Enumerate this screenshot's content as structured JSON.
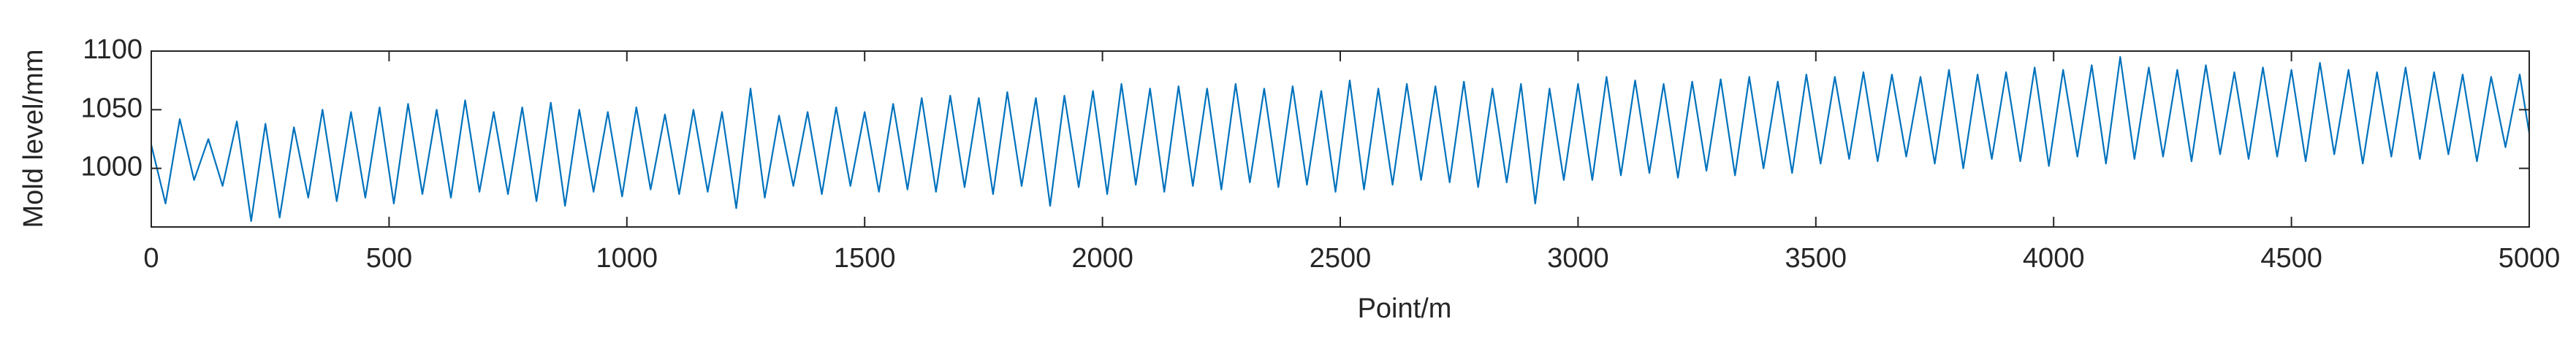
{
  "chart_data": {
    "type": "line",
    "xlabel": "Point/m",
    "ylabel": "Mold level/mm",
    "xlim": [
      0,
      5000
    ],
    "xticks": [
      0,
      500,
      1000,
      1500,
      2000,
      2500,
      3000,
      3500,
      4000,
      4500,
      5000
    ],
    "ylim": [
      950,
      1100
    ],
    "yticks": [
      1000,
      1050,
      1100
    ],
    "color": "#0072bd",
    "x": [
      0,
      30,
      60,
      90,
      120,
      150,
      180,
      210,
      240,
      270,
      300,
      330,
      360,
      390,
      420,
      450,
      480,
      510,
      540,
      570,
      600,
      630,
      660,
      690,
      720,
      750,
      780,
      810,
      840,
      870,
      900,
      930,
      960,
      990,
      1020,
      1050,
      1080,
      1110,
      1140,
      1170,
      1200,
      1230,
      1260,
      1290,
      1320,
      1350,
      1380,
      1410,
      1440,
      1470,
      1500,
      1530,
      1560,
      1590,
      1620,
      1650,
      1680,
      1710,
      1740,
      1770,
      1800,
      1830,
      1860,
      1890,
      1920,
      1950,
      1980,
      2010,
      2040,
      2070,
      2100,
      2130,
      2160,
      2190,
      2220,
      2250,
      2280,
      2310,
      2340,
      2370,
      2400,
      2430,
      2460,
      2490,
      2520,
      2550,
      2580,
      2610,
      2640,
      2670,
      2700,
      2730,
      2760,
      2790,
      2820,
      2850,
      2880,
      2910,
      2940,
      2970,
      3000,
      3030,
      3060,
      3090,
      3120,
      3150,
      3180,
      3210,
      3240,
      3270,
      3300,
      3330,
      3360,
      3390,
      3420,
      3450,
      3480,
      3510,
      3540,
      3570,
      3600,
      3630,
      3660,
      3690,
      3720,
      3750,
      3780,
      3810,
      3840,
      3870,
      3900,
      3930,
      3960,
      3990,
      4020,
      4050,
      4080,
      4110,
      4140,
      4170,
      4200,
      4230,
      4260,
      4290,
      4320,
      4350,
      4380,
      4410,
      4440,
      4470,
      4500,
      4530,
      4560,
      4590,
      4620,
      4650,
      4680,
      4710,
      4740,
      4770,
      4800,
      4830,
      4860,
      4890,
      4920,
      4950,
      4980,
      5000
    ],
    "values": [
      1020,
      970,
      1042,
      990,
      1025,
      985,
      1040,
      955,
      1038,
      958,
      1035,
      975,
      1050,
      972,
      1048,
      975,
      1052,
      970,
      1055,
      978,
      1050,
      975,
      1058,
      980,
      1048,
      978,
      1052,
      972,
      1056,
      968,
      1050,
      980,
      1048,
      976,
      1052,
      982,
      1046,
      978,
      1050,
      980,
      1048,
      966,
      1068,
      975,
      1045,
      985,
      1048,
      978,
      1052,
      985,
      1048,
      980,
      1055,
      982,
      1060,
      980,
      1062,
      984,
      1060,
      978,
      1065,
      985,
      1060,
      968,
      1062,
      984,
      1066,
      978,
      1072,
      986,
      1068,
      980,
      1070,
      985,
      1068,
      982,
      1072,
      988,
      1068,
      984,
      1070,
      986,
      1066,
      980,
      1075,
      982,
      1068,
      986,
      1072,
      990,
      1070,
      988,
      1074,
      984,
      1068,
      988,
      1072,
      970,
      1068,
      990,
      1072,
      990,
      1078,
      994,
      1075,
      996,
      1072,
      992,
      1074,
      998,
      1076,
      994,
      1078,
      1000,
      1074,
      996,
      1080,
      1004,
      1078,
      1008,
      1082,
      1006,
      1080,
      1010,
      1078,
      1004,
      1084,
      1000,
      1080,
      1008,
      1082,
      1006,
      1086,
      1002,
      1084,
      1010,
      1088,
      1004,
      1095,
      1008,
      1086,
      1010,
      1084,
      1006,
      1088,
      1012,
      1082,
      1008,
      1086,
      1010,
      1084,
      1006,
      1090,
      1012,
      1084,
      1004,
      1082,
      1010,
      1086,
      1008,
      1082,
      1012,
      1080,
      1006,
      1078,
      1018,
      1080,
      1030
    ]
  }
}
